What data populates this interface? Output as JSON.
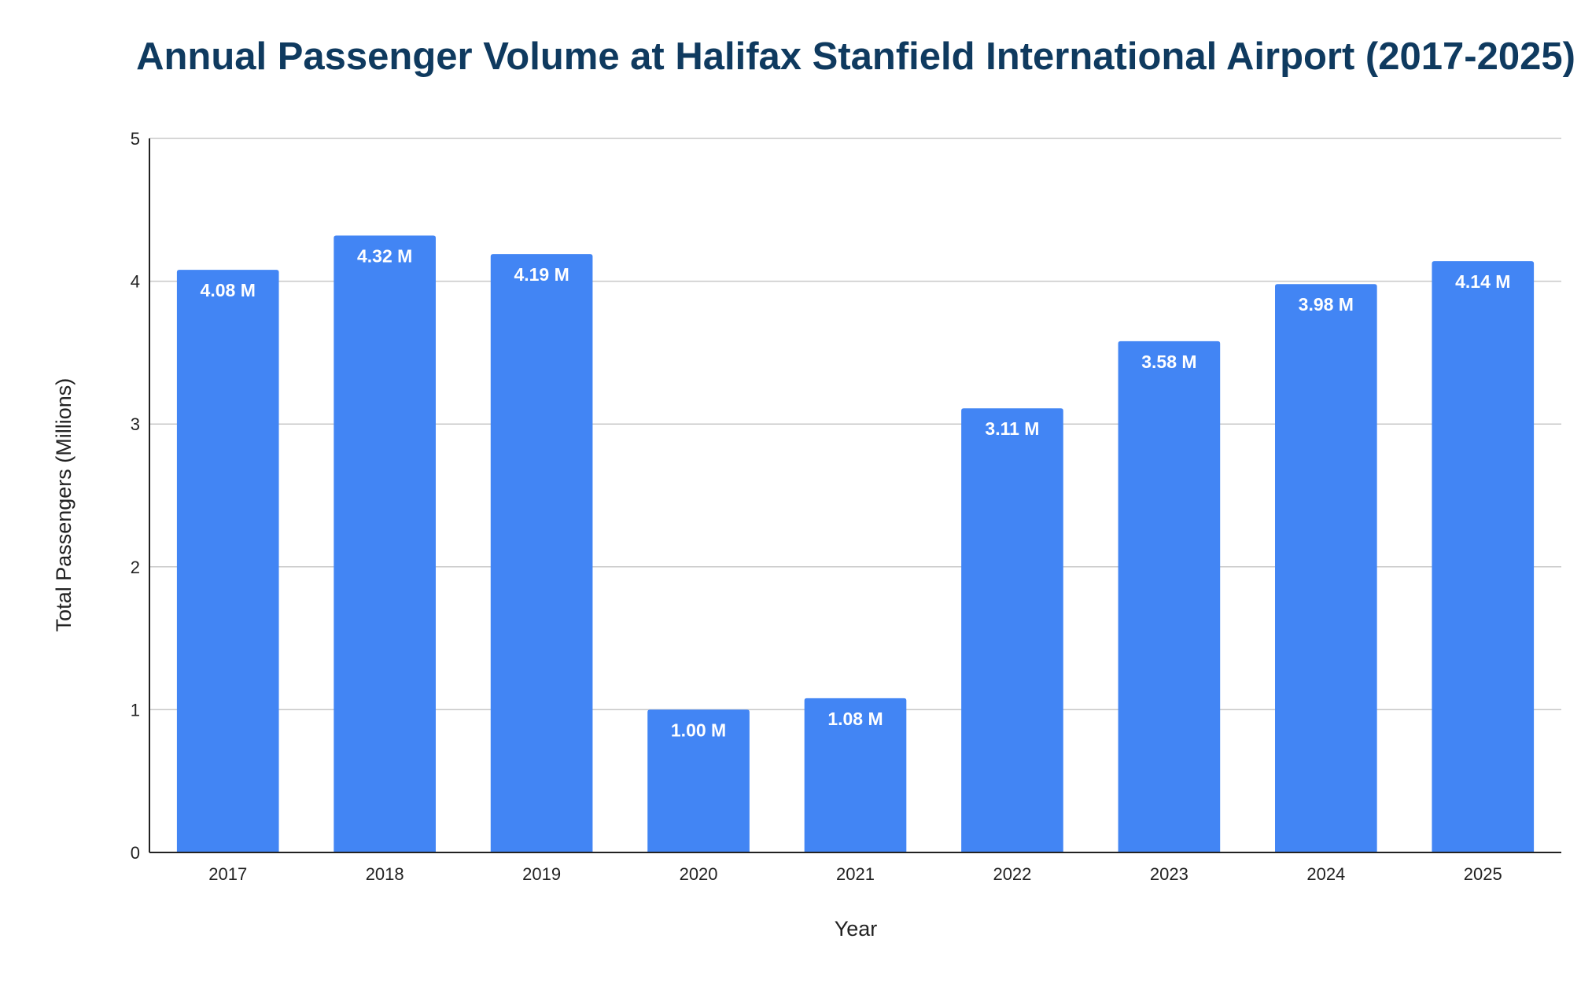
{
  "chart_data": {
    "type": "bar",
    "title": "Annual Passenger Volume at Halifax Stanfield International Airport (2017-2025)",
    "xlabel": "Year",
    "ylabel": "Total Passengers (Millions)",
    "categories": [
      "2017",
      "2018",
      "2019",
      "2020",
      "2021",
      "2022",
      "2023",
      "2024",
      "2025"
    ],
    "values": [
      4.08,
      4.32,
      4.19,
      1.0,
      1.08,
      3.11,
      3.58,
      3.98,
      4.14
    ],
    "data_labels": [
      "4.08 M",
      "4.32 M",
      "4.19 M",
      "1.00 M",
      "1.08 M",
      "3.11 M",
      "3.58 M",
      "3.98 M",
      "4.14 M"
    ],
    "ylim": [
      0,
      5
    ],
    "yticks": [
      "0",
      "1",
      "2",
      "3",
      "4",
      "5"
    ],
    "grid": true,
    "legend": "none",
    "bar_color": "#4285f4",
    "title_color": "#0f3a5f"
  }
}
